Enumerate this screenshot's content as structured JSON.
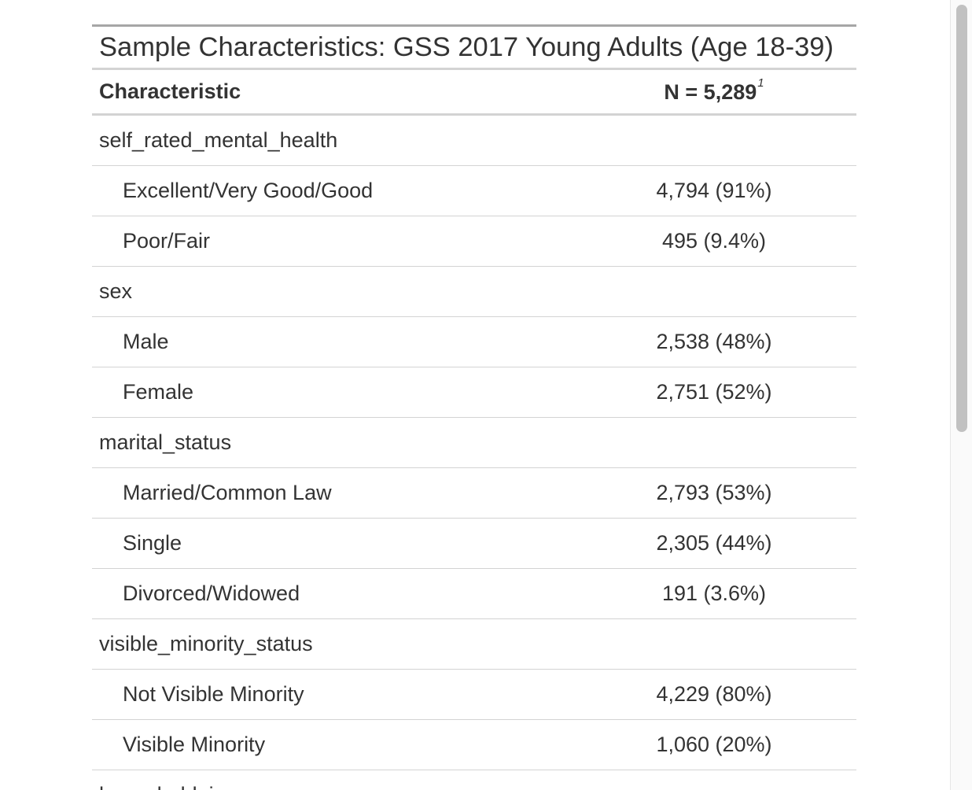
{
  "table": {
    "title": "Sample Characteristics: GSS 2017 Young Adults (Age 18-39)",
    "header": {
      "characteristic": "Characteristic",
      "n_label": "N = 5,289",
      "footnote_marker": "1"
    },
    "rows": [
      {
        "type": "variable",
        "label": "self_rated_mental_health",
        "value": ""
      },
      {
        "type": "level",
        "label": "Excellent/Very Good/Good",
        "value": "4,794 (91%)"
      },
      {
        "type": "level",
        "label": "Poor/Fair",
        "value": "495 (9.4%)"
      },
      {
        "type": "variable",
        "label": "sex",
        "value": ""
      },
      {
        "type": "level",
        "label": "Male",
        "value": "2,538 (48%)"
      },
      {
        "type": "level",
        "label": "Female",
        "value": "2,751 (52%)"
      },
      {
        "type": "variable",
        "label": "marital_status",
        "value": ""
      },
      {
        "type": "level",
        "label": "Married/Common Law",
        "value": "2,793 (53%)"
      },
      {
        "type": "level",
        "label": "Single",
        "value": "2,305 (44%)"
      },
      {
        "type": "level",
        "label": "Divorced/Widowed",
        "value": "191 (3.6%)"
      },
      {
        "type": "variable",
        "label": "visible_minority_status",
        "value": ""
      },
      {
        "type": "level",
        "label": "Not Visible Minority",
        "value": "4,229 (80%)"
      },
      {
        "type": "level",
        "label": "Visible Minority",
        "value": "1,060 (20%)"
      },
      {
        "type": "variable",
        "label": "household_income",
        "value": ""
      }
    ]
  }
}
